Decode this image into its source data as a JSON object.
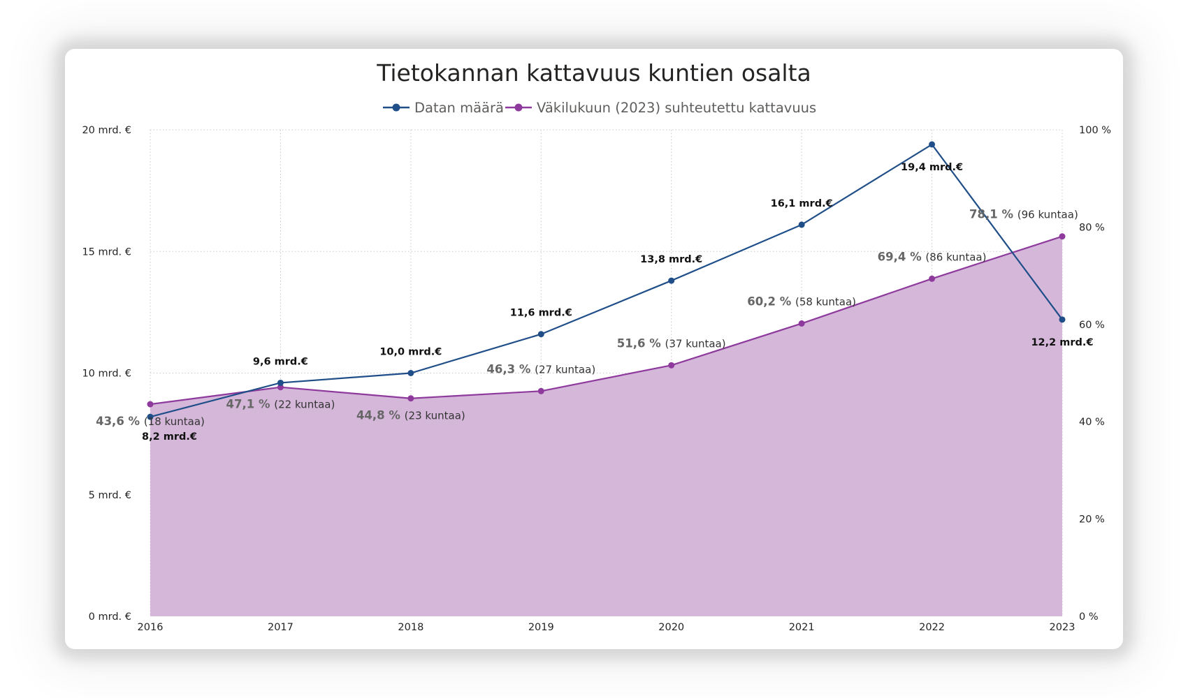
{
  "chart_data": {
    "type": "line",
    "title": "Tietokannan kattavuus kuntien osalta",
    "categories": [
      "2016",
      "2017",
      "2018",
      "2019",
      "2020",
      "2021",
      "2022",
      "2023"
    ],
    "series": [
      {
        "name": "Datan määrä",
        "axis": "left",
        "color": "#1f4e88",
        "values": [
          8.2,
          9.6,
          10.0,
          11.6,
          13.8,
          16.1,
          19.4,
          12.2
        ],
        "labels": [
          "8,2 mrd.€",
          "9,6 mrd.€",
          "10,0 mrd.€",
          "11,6 mrd.€",
          "13,8 mrd.€",
          "16,1 mrd.€",
          "19,4 mrd.€",
          "12,2 mrd.€"
        ]
      },
      {
        "name": "Väkilukuun (2023) suhteutettu kattavuus",
        "axis": "right",
        "color": "#8e3a9d",
        "area_color": "#d5b7da",
        "values": [
          43.6,
          47.1,
          44.8,
          46.3,
          51.6,
          60.2,
          69.4,
          78.1
        ],
        "labels": [
          "43,6 %",
          "47,1 %",
          "44,8 %",
          "46,3 %",
          "51,6 %",
          "60,2 %",
          "69,4 %",
          "78,1 %"
        ],
        "counts": [
          "(18 kuntaa)",
          "(22 kuntaa)",
          "(23 kuntaa)",
          "(27 kuntaa)",
          "(37 kuntaa)",
          "(58 kuntaa)",
          "(86 kuntaa)",
          "(96 kuntaa)"
        ]
      }
    ],
    "y_left": {
      "ylim": [
        0,
        20
      ],
      "ticks": [
        0,
        5,
        10,
        15,
        20
      ],
      "tick_labels": [
        "0 mrd. €",
        "5 mrd. €",
        "10 mrd. €",
        "15 mrd. €",
        "20 mrd. €"
      ]
    },
    "y_right": {
      "ylim": [
        0,
        100
      ],
      "ticks": [
        0,
        20,
        40,
        60,
        80,
        100
      ],
      "tick_labels": [
        "0 %",
        "20 %",
        "40 %",
        "60 %",
        "80 %",
        "100 %"
      ]
    },
    "grid": true,
    "legend_position": "top-center"
  }
}
